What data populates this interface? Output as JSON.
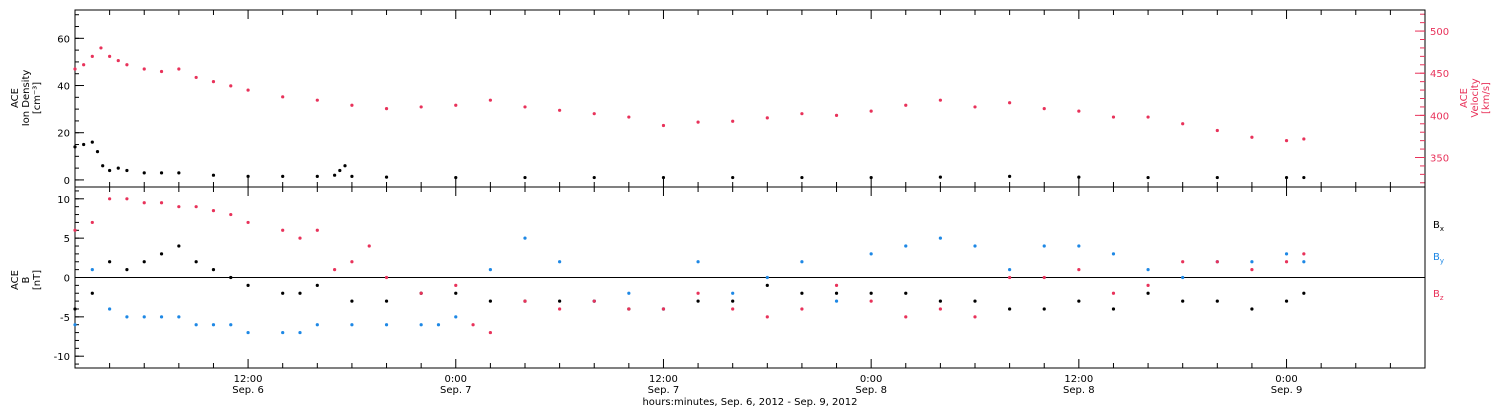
{
  "colors": {
    "black": "#000000",
    "pink": "#e8325a",
    "blue": "#1e88e5",
    "axis": "#000000"
  },
  "xaxis": {
    "label": "hours:minutes, Sep.  6, 2012 - Sep.  9, 2012",
    "range_hours": [
      0,
      78
    ],
    "ticks": [
      {
        "hour": 10,
        "time": "12:00",
        "date": "Sep. 6"
      },
      {
        "hour": 22,
        "time": "0:00",
        "date": "Sep. 7"
      },
      {
        "hour": 34,
        "time": "12:00",
        "date": "Sep. 7"
      },
      {
        "hour": 46,
        "time": "0:00",
        "date": "Sep. 8"
      },
      {
        "hour": 58,
        "time": "12:00",
        "date": "Sep. 8"
      },
      {
        "hour": 70,
        "time": "0:00",
        "date": "Sep. 9"
      }
    ]
  },
  "chart_data": [
    {
      "type": "scatter",
      "title": "",
      "left_axis": {
        "label": [
          "ACE",
          "Ion Density",
          "[cm⁻³]"
        ],
        "ylim": [
          -3,
          72
        ],
        "ticks": [
          0,
          20,
          40,
          60
        ]
      },
      "right_axis": {
        "label": [
          "ACE",
          "Velocity",
          "[km/s]"
        ],
        "ylim": [
          315,
          525
        ],
        "ticks": [
          350,
          400,
          450,
          500
        ]
      },
      "grid": false,
      "series": [
        {
          "name": "Ion Density",
          "axis": "left",
          "color": "black",
          "x": [
            0,
            0.5,
            1,
            1.3,
            1.6,
            2,
            2.5,
            3,
            4,
            5,
            6,
            8,
            10,
            12,
            14,
            15,
            15.3,
            15.6,
            16,
            18,
            22,
            26,
            30,
            34,
            38,
            42,
            46,
            50,
            54,
            58,
            62,
            66,
            70,
            71
          ],
          "y": [
            14,
            15,
            16,
            12,
            6,
            4,
            5,
            4,
            3,
            3,
            3,
            2,
            1.5,
            1.5,
            1.5,
            2,
            4,
            6,
            1.5,
            1.2,
            1.0,
            1.0,
            1.0,
            1.0,
            1.0,
            1.0,
            1.0,
            1.2,
            1.5,
            1.2,
            1.0,
            1.0,
            1.0,
            1.0
          ]
        },
        {
          "name": "Velocity",
          "axis": "right",
          "color": "pink",
          "x": [
            0,
            0.5,
            1,
            1.5,
            2,
            2.5,
            3,
            4,
            5,
            6,
            7,
            8,
            9,
            10,
            12,
            14,
            16,
            18,
            20,
            22,
            24,
            26,
            28,
            30,
            32,
            34,
            36,
            38,
            40,
            42,
            44,
            46,
            48,
            50,
            52,
            54,
            56,
            58,
            60,
            62,
            64,
            66,
            68,
            70,
            71
          ],
          "y": [
            455,
            460,
            470,
            480,
            470,
            465,
            460,
            455,
            452,
            455,
            445,
            440,
            435,
            430,
            422,
            418,
            412,
            408,
            410,
            412,
            418,
            410,
            406,
            402,
            398,
            388,
            392,
            393,
            397,
            402,
            400,
            405,
            412,
            418,
            410,
            415,
            408,
            405,
            398,
            398,
            390,
            382,
            374,
            370,
            372
          ]
        }
      ]
    },
    {
      "type": "scatter",
      "title": "",
      "left_axis": {
        "label": [
          "ACE",
          "B",
          "[nT]"
        ],
        "ylim": [
          -11.5,
          11.5
        ],
        "ticks": [
          -10,
          -5,
          0,
          5,
          10
        ]
      },
      "reference_line": 0,
      "grid": false,
      "legend": {
        "placement": "right",
        "entries": [
          {
            "name": "Bx",
            "base": "B",
            "sub": "x",
            "color": "black"
          },
          {
            "name": "By",
            "base": "B",
            "sub": "y",
            "color": "blue"
          },
          {
            "name": "Bz",
            "base": "B",
            "sub": "z",
            "color": "pink"
          }
        ]
      },
      "series": [
        {
          "name": "Bx",
          "color": "black",
          "x": [
            0,
            1,
            2,
            3,
            4,
            5,
            6,
            7,
            8,
            9,
            10,
            12,
            13,
            14,
            16,
            18,
            20,
            22,
            24,
            26,
            28,
            30,
            32,
            34,
            36,
            38,
            40,
            42,
            44,
            46,
            48,
            50,
            52,
            54,
            56,
            58,
            60,
            62,
            64,
            66,
            68,
            70,
            71
          ],
          "y": [
            -4,
            -2,
            2,
            1,
            2,
            3,
            4,
            2,
            1,
            0,
            -1,
            -2,
            -2,
            -1,
            -3,
            -3,
            -2,
            -2,
            -3,
            -3,
            -3,
            -3,
            -4,
            -4,
            -3,
            -3,
            -1,
            -2,
            -2,
            -2,
            -2,
            -3,
            -3,
            -4,
            -4,
            -3,
            -4,
            -2,
            -3,
            -3,
            -4,
            -3,
            -2
          ]
        },
        {
          "name": "By",
          "color": "blue",
          "x": [
            0,
            1,
            2,
            3,
            4,
            5,
            6,
            7,
            8,
            9,
            10,
            12,
            13,
            14,
            16,
            18,
            20,
            21,
            22,
            24,
            26,
            28,
            30,
            32,
            34,
            36,
            38,
            40,
            42,
            44,
            46,
            48,
            50,
            52,
            54,
            56,
            58,
            60,
            62,
            64,
            66,
            68,
            70,
            71
          ],
          "y": [
            -6,
            1,
            -4,
            -5,
            -5,
            -5,
            -5,
            -6,
            -6,
            -6,
            -7,
            -7,
            -7,
            -6,
            -6,
            -6,
            -6,
            -6,
            -5,
            1,
            5,
            2,
            -3,
            -2,
            -4,
            2,
            -2,
            0,
            2,
            -3,
            3,
            4,
            5,
            4,
            1,
            4,
            4,
            3,
            1,
            0,
            2,
            2,
            3,
            2
          ]
        },
        {
          "name": "Bz",
          "color": "pink",
          "x": [
            0,
            1,
            2,
            3,
            4,
            5,
            6,
            7,
            8,
            9,
            10,
            12,
            13,
            14,
            15,
            16,
            17,
            18,
            20,
            22,
            23,
            24,
            26,
            28,
            30,
            32,
            34,
            36,
            38,
            40,
            42,
            44,
            46,
            48,
            50,
            52,
            54,
            56,
            58,
            60,
            62,
            64,
            66,
            68,
            70,
            71
          ],
          "y": [
            6,
            7,
            10,
            10,
            9.5,
            9.5,
            9,
            9,
            8.5,
            8,
            7,
            6,
            5,
            6,
            1,
            2,
            4,
            0,
            -2,
            -1,
            -6,
            -7,
            -3,
            -4,
            -3,
            -4,
            -4,
            -2,
            -4,
            -5,
            -4,
            -1,
            -3,
            -5,
            -4,
            -5,
            0,
            0,
            1,
            -2,
            -1,
            2,
            2,
            1,
            2,
            3
          ]
        }
      ]
    }
  ]
}
